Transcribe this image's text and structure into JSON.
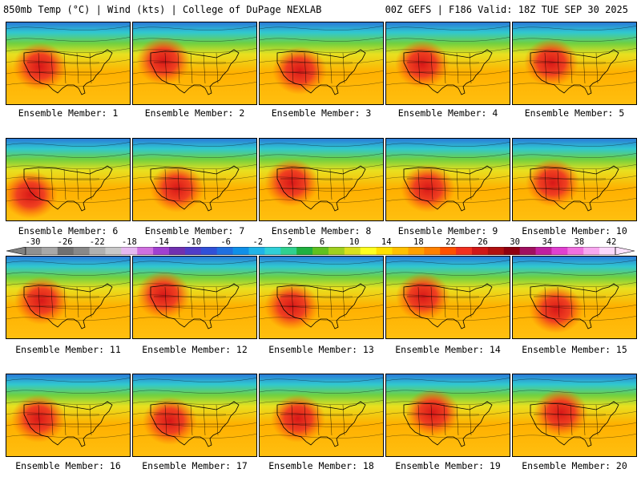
{
  "header": {
    "left": "850mb Temp (°C) | Wind (kts) | College of DuPage NEXLAB",
    "right": "00Z GEFS | F186 Valid: 18Z TUE SEP 30 2025"
  },
  "members": [
    {
      "label": "Ensemble Member: 1"
    },
    {
      "label": "Ensemble Member: 2"
    },
    {
      "label": "Ensemble Member: 3"
    },
    {
      "label": "Ensemble Member: 4"
    },
    {
      "label": "Ensemble Member: 5"
    },
    {
      "label": "Ensemble Member: 6"
    },
    {
      "label": "Ensemble Member: 7"
    },
    {
      "label": "Ensemble Member: 8"
    },
    {
      "label": "Ensemble Member: 9"
    },
    {
      "label": "Ensemble Member: 10"
    },
    {
      "label": "Ensemble Member: 11"
    },
    {
      "label": "Ensemble Member: 12"
    },
    {
      "label": "Ensemble Member: 13"
    },
    {
      "label": "Ensemble Member: 14"
    },
    {
      "label": "Ensemble Member: 15"
    },
    {
      "label": "Ensemble Member: 16"
    },
    {
      "label": "Ensemble Member: 17"
    },
    {
      "label": "Ensemble Member: 18"
    },
    {
      "label": "Ensemble Member: 19"
    },
    {
      "label": "Ensemble Member: 20"
    }
  ],
  "colorbar": {
    "ticks": [
      "-30",
      "-26",
      "-22",
      "-18",
      "-14",
      "-10",
      "-6",
      "-2",
      "2",
      "6",
      "10",
      "14",
      "18",
      "22",
      "26",
      "30",
      "34",
      "38",
      "42"
    ],
    "colors": [
      "#909090",
      "#a8a8a8",
      "#707070",
      "#888888",
      "#b0b0b0",
      "#c8c8c8",
      "#e6b8f0",
      "#d070e0",
      "#a040d0",
      "#7030b0",
      "#503cc8",
      "#3050d8",
      "#2070e0",
      "#1090e8",
      "#20b4e8",
      "#30d0d8",
      "#30d090",
      "#20b040",
      "#60c020",
      "#a0d020",
      "#d8e020",
      "#ffff20",
      "#ffe000",
      "#ffc000",
      "#ffa000",
      "#ff8000",
      "#ff5000",
      "#f03020",
      "#d01818",
      "#b01010",
      "#900010",
      "#a01060",
      "#c020a0",
      "#e040d0",
      "#f070e0",
      "#f8a8f0",
      "#fcd8fc"
    ]
  }
}
